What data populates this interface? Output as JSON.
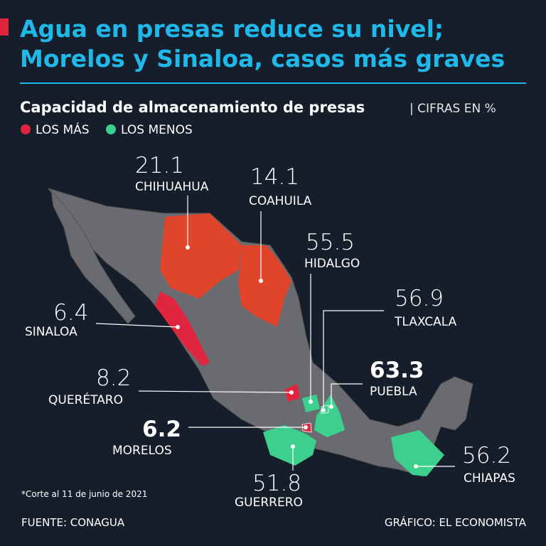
{
  "header": {
    "title": [
      "Agua en presas reduce su nivel;",
      "Morelos y Sinaloa, casos más graves"
    ],
    "subtitle": "Capacidad de almacenamiento de presas",
    "unit": "| CIFRAS EN %"
  },
  "legend": [
    "LOS MÁS",
    "LOS MENOS"
  ],
  "states": [
    {
      "name": "CHIHUAHUA",
      "value": 21.1
    },
    {
      "name": "COAHUILA",
      "value": 14.1
    },
    {
      "name": "HIDALGO",
      "value": 55.5
    },
    {
      "name": "TLAXCALA",
      "value": 56.9
    },
    {
      "name": "PUEBLA",
      "value": 63.3
    },
    {
      "name": "SINALOA",
      "value": 6.4
    },
    {
      "name": "QUERÉTARO",
      "value": 8.2
    },
    {
      "name": "MORELOS",
      "value": 6.2
    },
    {
      "name": "GUERRERO",
      "value": 51.8
    },
    {
      "name": "CHIAPAS",
      "value": 56.2
    }
  ],
  "footer": {
    "note": "*Corte al 11 de junio de 2021",
    "source": "FUENTE: CONAGUA",
    "credit": "GRÁFICO: EL ECONOMISTA"
  }
}
